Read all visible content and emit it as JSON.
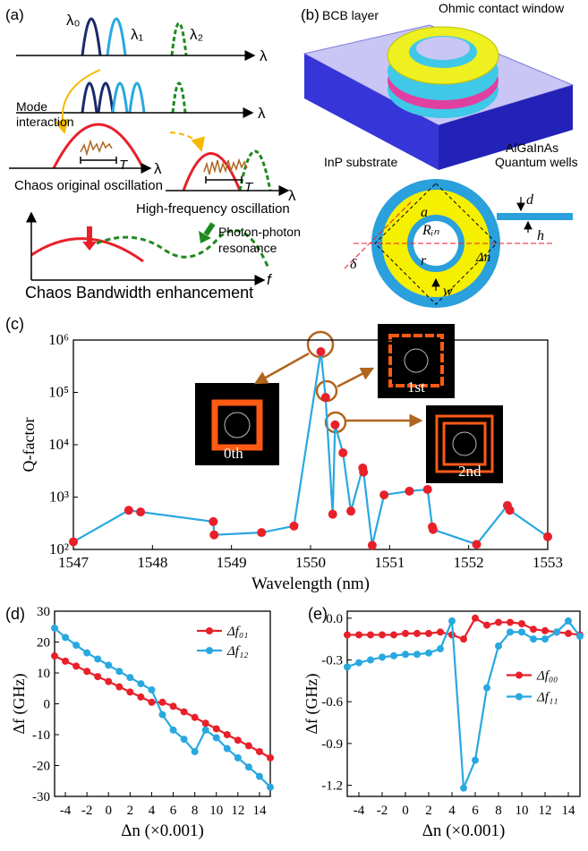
{
  "panel_a": {
    "label": "(a)",
    "lambda0": "λ₀",
    "lambda1": "λ₁",
    "lambda2": "λ₂",
    "axis1": "λ",
    "axis2": "λ",
    "mode1": "Mode",
    "mode2": "interaction",
    "t1": "T",
    "axis3": "λ",
    "chaos": "Chaos original oscillation",
    "t2": "T",
    "axis4": "λ",
    "hf": "High-frequency oscillation",
    "pp1": "Photon-photon",
    "pp2": "resonance",
    "faxis": "f",
    "bottom": "Chaos Bandwidth enhancement"
  },
  "panel_b": {
    "label": "(b)",
    "bcb": "BCB layer",
    "ohmic": "Ohmic contact window",
    "inp": "InP substrate",
    "alg": "AlGaInAs",
    "qw": "Quantum wells",
    "d": "d",
    "h": "h",
    "a": "a",
    "rin": "Rᵢₙ",
    "r": "r",
    "dn": "Δn",
    "delta": "δ",
    "w": "w"
  },
  "chart_data": [
    {
      "type": "line",
      "panel_label": "(c)",
      "x_label": "Wavelength (nm)",
      "y_label": "Q-factor",
      "y_log": true,
      "annotations": [
        "0th",
        "1st",
        "2nd"
      ],
      "x": [
        1547.0,
        1547.7,
        1547.85,
        1548.77,
        1548.78,
        1549.38,
        1549.79,
        1550.13,
        1550.19,
        1550.28,
        1550.31,
        1550.41,
        1550.51,
        1550.66,
        1550.67,
        1550.78,
        1550.93,
        1551.25,
        1551.48,
        1551.54,
        1551.55,
        1552.1,
        1552.49,
        1552.52,
        1553.0
      ],
      "series": [
        {
          "color": "#29a8e0",
          "marker_color": "#e8202a",
          "values": [
            140,
            560,
            520,
            340,
            190,
            210,
            280,
            600000,
            80000,
            470,
            24000,
            7000,
            540,
            3600,
            3000,
            120,
            1100,
            1300,
            1400,
            270,
            240,
            125,
            690,
            560,
            175
          ]
        }
      ],
      "xlim": [
        1547,
        1553
      ],
      "xticks": [
        1547,
        1548,
        1549,
        1550,
        1551,
        1552,
        1553
      ],
      "ylim": [
        100,
        1000000
      ],
      "yticks": [
        {
          "value": 100,
          "label": "10²"
        },
        {
          "value": 1000,
          "label": "10³"
        },
        {
          "value": 10000,
          "label": "10⁴"
        },
        {
          "value": 100000,
          "label": "10⁵"
        },
        {
          "value": 1000000,
          "label": "10⁶"
        }
      ]
    },
    {
      "type": "line",
      "panel_label": "(d)",
      "x_label": "Δn (×0.001)",
      "y_label": "Δf (GHz)",
      "y_log": false,
      "x": [
        -5,
        -4,
        -3,
        -2,
        -1,
        0,
        1,
        2,
        3,
        4,
        5,
        6,
        7,
        8,
        9,
        10,
        11,
        12,
        13,
        14,
        15
      ],
      "series": [
        {
          "name": "Δf₀₁",
          "color": "#e8202a",
          "values": [
            15.5,
            13.8,
            12.2,
            10.5,
            8.8,
            7.2,
            5.5,
            3.8,
            2.2,
            0.5,
            0.5,
            -0.8,
            -2.6,
            -4.4,
            -6.3,
            -8.1,
            -10,
            -11.8,
            -13.6,
            -15.5,
            -17.5
          ]
        },
        {
          "name": "Δf₁₂",
          "color": "#29a8e0",
          "values": [
            24.5,
            21.5,
            19,
            16.5,
            14.5,
            12.5,
            10.5,
            8.5,
            6.5,
            4.5,
            -3.5,
            -8.5,
            -11.5,
            -15.5,
            -8.5,
            -11,
            -14.5,
            -17.5,
            -20.5,
            -23.5,
            -27
          ]
        }
      ],
      "xlim": [
        -5,
        15
      ],
      "xticks": [
        -4,
        -2,
        0,
        2,
        4,
        6,
        8,
        10,
        12,
        14
      ],
      "ylim": [
        -30,
        30
      ],
      "yticks": [
        -30,
        -20,
        -10,
        0,
        10,
        20,
        30
      ],
      "legend": "top-right"
    },
    {
      "type": "line",
      "panel_label": "(e)",
      "x_label": "Δn (×0.001)",
      "y_label": "Δf (GHz)",
      "y_log": false,
      "x": [
        -5,
        -4,
        -3,
        -2,
        -1,
        0,
        1,
        2,
        3,
        4,
        5,
        6,
        7,
        8,
        9,
        10,
        11,
        12,
        13,
        14,
        15
      ],
      "series": [
        {
          "name": "Δf₀₀",
          "color": "#e8202a",
          "values": [
            -0.12,
            -0.12,
            -0.12,
            -0.12,
            -0.12,
            -0.11,
            -0.11,
            -0.11,
            -0.1,
            -0.12,
            -0.15,
            0.0,
            -0.05,
            -0.03,
            -0.03,
            -0.04,
            -0.08,
            -0.09,
            -0.1,
            -0.11,
            -0.12
          ]
        },
        {
          "name": "Δf₁₁",
          "color": "#29a8e0",
          "values": [
            -0.35,
            -0.32,
            -0.3,
            -0.28,
            -0.27,
            -0.26,
            -0.26,
            -0.25,
            -0.22,
            -0.02,
            -1.22,
            -1.02,
            -0.5,
            -0.2,
            -0.1,
            -0.1,
            -0.15,
            -0.15,
            -0.1,
            -0.02,
            -0.13
          ]
        }
      ],
      "xlim": [
        -5,
        15
      ],
      "xticks": [
        -4,
        -2,
        0,
        2,
        4,
        6,
        8,
        10,
        12,
        14
      ],
      "ylim": [
        -1.28,
        0.05
      ],
      "yticks": [
        {
          "value": 0,
          "label": "0.0"
        },
        -0.3,
        -0.6,
        -0.9,
        -1.2
      ],
      "legend": "center-right"
    }
  ]
}
